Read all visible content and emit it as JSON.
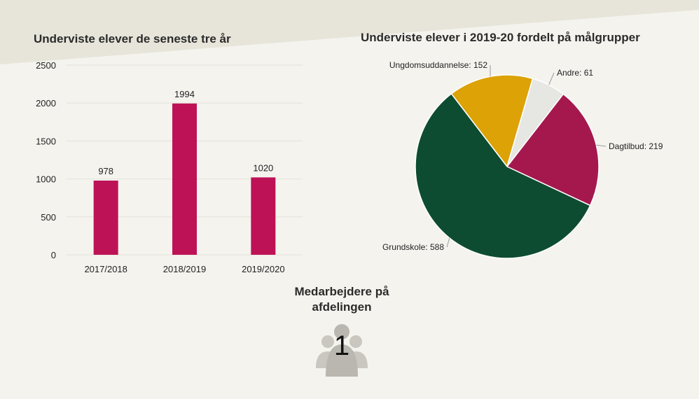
{
  "staff": {
    "title_line1": "Medarbejdere på",
    "title_line2": "afdelingen",
    "count": "1",
    "icon": "people-group-icon"
  },
  "colors": {
    "background": "#f4f3ee",
    "wedge": "#e7e5da",
    "bar": "#be1256",
    "grid": "#e3e1d8"
  },
  "chart_data": [
    {
      "type": "bar",
      "title": "Underviste elever de seneste tre år",
      "categories": [
        "2017/2018",
        "2018/2019",
        "2019/2020"
      ],
      "values": [
        978,
        1994,
        1020
      ],
      "data_labels": [
        "978",
        "1994",
        "1020"
      ],
      "ylim": [
        0,
        2500
      ],
      "yticks": [
        0,
        500,
        1000,
        1500,
        2000,
        2500
      ],
      "grid": true,
      "color": "#be1256"
    },
    {
      "type": "pie",
      "title": "Underviste elever i 2019-20 fordelt på målgrupper",
      "slices": [
        {
          "label": "Ungdomsuddannelse",
          "value": 152,
          "color": "#dca206"
        },
        {
          "label": "Andre",
          "value": 61,
          "color": "#e6e6e3"
        },
        {
          "label": "Dagtilbud",
          "value": 219,
          "color": "#a5184e"
        },
        {
          "label": "Grundskole",
          "value": 588,
          "color": "#0d4c30"
        }
      ]
    }
  ]
}
